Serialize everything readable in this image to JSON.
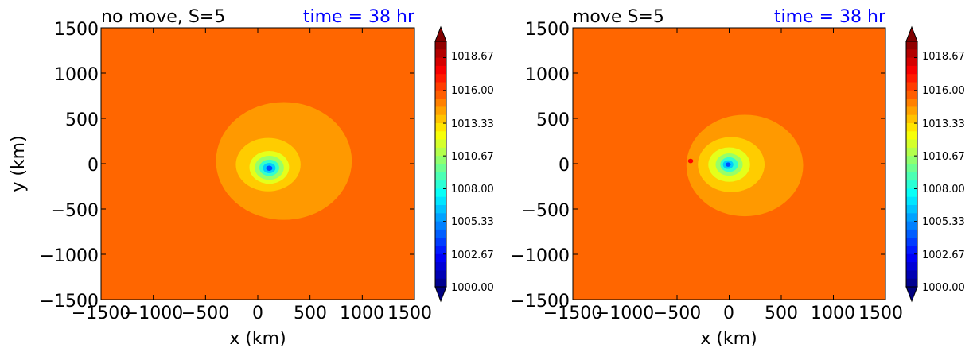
{
  "chart_data": [
    {
      "type": "heatmap",
      "subtype": "filled-contour",
      "title_left": "no move, S=5",
      "title_right": "time = 38 hr",
      "title_right_color": "#0000ff",
      "xlabel": "x (km)",
      "ylabel": "y (km)",
      "xlim": [
        -1500,
        1500
      ],
      "ylim": [
        -1500,
        1500
      ],
      "xticks": [
        "−1500",
        "−1000",
        "−500",
        "0",
        "500",
        "1000",
        "1500"
      ],
      "yticks": [
        "1500",
        "1000",
        "500",
        "0",
        "−500",
        "−1000",
        "−1500"
      ],
      "colorbar": {
        "min": 1000.0,
        "max": 1020.0,
        "ticks": [
          "1018.67",
          "1016.00",
          "1013.33",
          "1010.67",
          "1008.00",
          "1005.33",
          "1002.67",
          "1000.00"
        ],
        "extend": "both",
        "colormap": "jet"
      },
      "field": {
        "background": 1015.5,
        "contours": [
          {
            "level": 1014.5,
            "center": [
              250,
              30
            ],
            "radius_km": 650
          },
          {
            "level": 1013.5,
            "center": [
              100,
              -10
            ],
            "radius_km": 310
          },
          {
            "level": 1012.0,
            "center": [
              110,
              -40
            ],
            "radius_km": 190
          },
          {
            "level": 1010.5,
            "center": [
              110,
              -45
            ],
            "radius_km": 140
          },
          {
            "level": 1008.5,
            "center": [
              110,
              -45
            ],
            "radius_km": 95
          },
          {
            "level": 1006.5,
            "center": [
              110,
              -48
            ],
            "radius_km": 60
          },
          {
            "level": 1004.0,
            "center": [
              110,
              -50
            ],
            "radius_km": 30
          }
        ],
        "min_pressure": 1003.5,
        "min_location": [
          110,
          -50
        ]
      }
    },
    {
      "type": "heatmap",
      "subtype": "filled-contour",
      "title_left": "move S=5",
      "title_right": "time = 38 hr",
      "title_right_color": "#0000ff",
      "xlabel": "x (km)",
      "ylabel": "",
      "xlim": [
        -1500,
        1500
      ],
      "ylim": [
        -1500,
        1500
      ],
      "xticks": [
        "−1500",
        "−1000",
        "−500",
        "0",
        "500",
        "1000",
        "1500"
      ],
      "yticks": [
        "1500",
        "1000",
        "500",
        "0",
        "−500",
        "−1000",
        "−1500"
      ],
      "colorbar": {
        "min": 1000.0,
        "max": 1020.0,
        "ticks": [
          "1018.67",
          "1016.00",
          "1013.33",
          "1010.67",
          "1008.00",
          "1005.33",
          "1002.67",
          "1000.00"
        ],
        "extend": "both",
        "colormap": "jet"
      },
      "field": {
        "background": 1015.5,
        "contours": [
          {
            "level": 1014.5,
            "center": [
              150,
              -20
            ],
            "radius_km": 560
          },
          {
            "level": 1013.5,
            "center": [
              20,
              -10
            ],
            "radius_km": 320
          },
          {
            "level": 1012.0,
            "center": [
              0,
              -10
            ],
            "radius_km": 200
          },
          {
            "level": 1010.5,
            "center": [
              0,
              -10
            ],
            "radius_km": 130
          },
          {
            "level": 1008.5,
            "center": [
              0,
              -10
            ],
            "radius_km": 85
          },
          {
            "level": 1006.5,
            "center": [
              -10,
              -10
            ],
            "radius_km": 50
          },
          {
            "level": 1004.0,
            "center": [
              -10,
              -10
            ],
            "radius_km": 25
          }
        ],
        "min_pressure": 1003.5,
        "min_location": [
          -10,
          -10
        ],
        "spot": {
          "level": 1017.5,
          "center": [
            -370,
            30
          ],
          "radius_km": 25
        }
      }
    }
  ]
}
